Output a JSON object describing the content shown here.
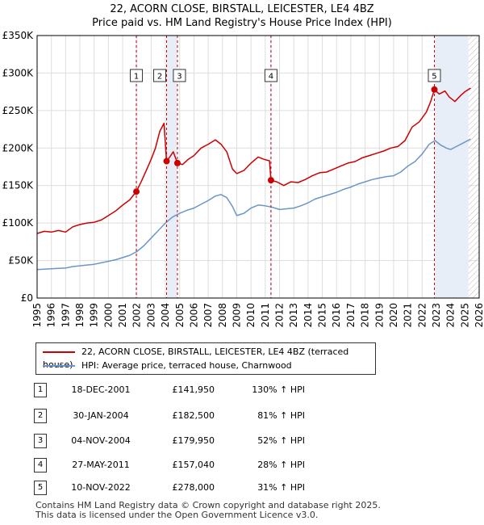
{
  "title_line1": "22, ACORN CLOSE, BIRSTALL, LEICESTER, LE4 4BZ",
  "title_line2": "Price paid vs. HM Land Registry's House Price Index (HPI)",
  "colors": {
    "property": "#cc0000",
    "hpi": "#6a96c8",
    "grid": "#dddddd",
    "marker_line": "#cc0000",
    "shade": "#e8eef7"
  },
  "chart_data": {
    "type": "line",
    "ylim": [
      0,
      350000
    ],
    "xlim": [
      1995,
      2026
    ],
    "yticks": [
      {
        "v": 0,
        "label": "£0"
      },
      {
        "v": 50000,
        "label": "£50K"
      },
      {
        "v": 100000,
        "label": "£100K"
      },
      {
        "v": 150000,
        "label": "£150K"
      },
      {
        "v": 200000,
        "label": "£200K"
      },
      {
        "v": 250000,
        "label": "£250K"
      },
      {
        "v": 300000,
        "label": "£300K"
      },
      {
        "v": 350000,
        "label": "£350K"
      }
    ],
    "xticks": [
      "1995",
      "1996",
      "1997",
      "1998",
      "1999",
      "2000",
      "2001",
      "2002",
      "2003",
      "2004",
      "2005",
      "2006",
      "2007",
      "2008",
      "2009",
      "2010",
      "2011",
      "2012",
      "2013",
      "2014",
      "2015",
      "2016",
      "2017",
      "2018",
      "2019",
      "2020",
      "2021",
      "2022",
      "2023",
      "2024",
      "2025",
      "2026"
    ],
    "hatch_start": 2025.25,
    "series": [
      {
        "name": "22, ACORN CLOSE, BIRSTALL, LEICESTER, LE4 4BZ (terraced house)",
        "points": [
          [
            1995.0,
            86000
          ],
          [
            1995.5,
            89000
          ],
          [
            1996.0,
            88000
          ],
          [
            1996.5,
            90000
          ],
          [
            1997.0,
            88000
          ],
          [
            1997.5,
            95000
          ],
          [
            1998.0,
            98000
          ],
          [
            1998.5,
            100000
          ],
          [
            1999.0,
            101000
          ],
          [
            1999.5,
            104000
          ],
          [
            2000.0,
            110000
          ],
          [
            2000.5,
            116000
          ],
          [
            2001.0,
            124000
          ],
          [
            2001.5,
            131000
          ],
          [
            2001.96,
            141950
          ],
          [
            2002.3,
            155000
          ],
          [
            2002.7,
            172000
          ],
          [
            2003.0,
            185000
          ],
          [
            2003.3,
            200000
          ],
          [
            2003.6,
            222000
          ],
          [
            2003.9,
            233000
          ],
          [
            2004.08,
            182500
          ],
          [
            2004.3,
            188000
          ],
          [
            2004.55,
            195000
          ],
          [
            2004.84,
            179950
          ],
          [
            2005.2,
            178000
          ],
          [
            2005.6,
            185000
          ],
          [
            2006.0,
            190000
          ],
          [
            2006.5,
            200000
          ],
          [
            2007.0,
            205000
          ],
          [
            2007.5,
            211000
          ],
          [
            2007.9,
            205000
          ],
          [
            2008.3,
            195000
          ],
          [
            2008.7,
            172000
          ],
          [
            2009.0,
            166000
          ],
          [
            2009.5,
            170000
          ],
          [
            2010.0,
            180000
          ],
          [
            2010.5,
            188000
          ],
          [
            2010.9,
            185000
          ],
          [
            2011.3,
            183000
          ],
          [
            2011.4,
            157040
          ],
          [
            2011.8,
            155000
          ],
          [
            2012.3,
            150000
          ],
          [
            2012.8,
            155000
          ],
          [
            2013.3,
            154000
          ],
          [
            2013.8,
            158000
          ],
          [
            2014.3,
            163000
          ],
          [
            2014.8,
            167000
          ],
          [
            2015.3,
            168000
          ],
          [
            2015.8,
            172000
          ],
          [
            2016.3,
            176000
          ],
          [
            2016.8,
            180000
          ],
          [
            2017.3,
            182000
          ],
          [
            2017.8,
            187000
          ],
          [
            2018.3,
            190000
          ],
          [
            2018.8,
            193000
          ],
          [
            2019.3,
            196000
          ],
          [
            2019.8,
            200000
          ],
          [
            2020.3,
            202000
          ],
          [
            2020.8,
            210000
          ],
          [
            2021.3,
            228000
          ],
          [
            2021.8,
            235000
          ],
          [
            2022.3,
            248000
          ],
          [
            2022.6,
            262000
          ],
          [
            2022.86,
            278000
          ],
          [
            2023.2,
            272000
          ],
          [
            2023.6,
            276000
          ],
          [
            2023.9,
            268000
          ],
          [
            2024.3,
            262000
          ],
          [
            2024.7,
            270000
          ],
          [
            2025.0,
            275000
          ],
          [
            2025.4,
            280000
          ]
        ]
      },
      {
        "name": "HPI: Average price, terraced house, Charnwood",
        "points": [
          [
            1995.0,
            38000
          ],
          [
            1995.5,
            38500
          ],
          [
            1996.0,
            39000
          ],
          [
            1996.5,
            39500
          ],
          [
            1997.0,
            40000
          ],
          [
            1997.5,
            42000
          ],
          [
            1998.0,
            43000
          ],
          [
            1998.5,
            44000
          ],
          [
            1999.0,
            45000
          ],
          [
            1999.5,
            47000
          ],
          [
            2000.0,
            49000
          ],
          [
            2000.5,
            51000
          ],
          [
            2001.0,
            54000
          ],
          [
            2001.5,
            57000
          ],
          [
            2002.0,
            62000
          ],
          [
            2002.5,
            70000
          ],
          [
            2003.0,
            80000
          ],
          [
            2003.5,
            90000
          ],
          [
            2004.0,
            100000
          ],
          [
            2004.5,
            108000
          ],
          [
            2005.0,
            113000
          ],
          [
            2005.5,
            117000
          ],
          [
            2006.0,
            120000
          ],
          [
            2006.5,
            125000
          ],
          [
            2007.0,
            130000
          ],
          [
            2007.5,
            136000
          ],
          [
            2007.9,
            138000
          ],
          [
            2008.3,
            134000
          ],
          [
            2008.7,
            122000
          ],
          [
            2009.0,
            110000
          ],
          [
            2009.5,
            113000
          ],
          [
            2010.0,
            120000
          ],
          [
            2010.5,
            124000
          ],
          [
            2011.0,
            123000
          ],
          [
            2011.5,
            121000
          ],
          [
            2012.0,
            118000
          ],
          [
            2012.5,
            119000
          ],
          [
            2013.0,
            120000
          ],
          [
            2013.5,
            123000
          ],
          [
            2014.0,
            127000
          ],
          [
            2014.5,
            132000
          ],
          [
            2015.0,
            135000
          ],
          [
            2015.5,
            138000
          ],
          [
            2016.0,
            141000
          ],
          [
            2016.5,
            145000
          ],
          [
            2017.0,
            148000
          ],
          [
            2017.5,
            152000
          ],
          [
            2018.0,
            155000
          ],
          [
            2018.5,
            158000
          ],
          [
            2019.0,
            160000
          ],
          [
            2019.5,
            162000
          ],
          [
            2020.0,
            163000
          ],
          [
            2020.5,
            168000
          ],
          [
            2021.0,
            176000
          ],
          [
            2021.5,
            182000
          ],
          [
            2022.0,
            192000
          ],
          [
            2022.5,
            205000
          ],
          [
            2022.9,
            210000
          ],
          [
            2023.3,
            204000
          ],
          [
            2023.7,
            200000
          ],
          [
            2024.0,
            198000
          ],
          [
            2024.5,
            203000
          ],
          [
            2025.0,
            208000
          ],
          [
            2025.4,
            212000
          ]
        ]
      }
    ],
    "sales": [
      {
        "n": "1",
        "x": 2001.96,
        "y": 141950
      },
      {
        "n": "2",
        "x": 2004.08,
        "y": 182500
      },
      {
        "n": "3",
        "x": 2004.84,
        "y": 179950
      },
      {
        "n": "4",
        "x": 2011.4,
        "y": 157040
      },
      {
        "n": "5",
        "x": 2022.86,
        "y": 278000
      }
    ]
  },
  "legend": {
    "property": "22, ACORN CLOSE, BIRSTALL, LEICESTER, LE4 4BZ (terraced house)",
    "hpi": "HPI: Average price, terraced house, Charnwood"
  },
  "transactions": [
    {
      "n": "1",
      "date": "18-DEC-2001",
      "price": "£141,950",
      "hpi": "130% ↑ HPI"
    },
    {
      "n": "2",
      "date": "30-JAN-2004",
      "price": "£182,500",
      "hpi": "81% ↑ HPI"
    },
    {
      "n": "3",
      "date": "04-NOV-2004",
      "price": "£179,950",
      "hpi": "52% ↑ HPI"
    },
    {
      "n": "4",
      "date": "27-MAY-2011",
      "price": "£157,040",
      "hpi": "28% ↑ HPI"
    },
    {
      "n": "5",
      "date": "10-NOV-2022",
      "price": "£278,000",
      "hpi": "31% ↑ HPI"
    }
  ],
  "footer_line1": "Contains HM Land Registry data © Crown copyright and database right 2025.",
  "footer_line2": "This data is licensed under the Open Government Licence v3.0."
}
